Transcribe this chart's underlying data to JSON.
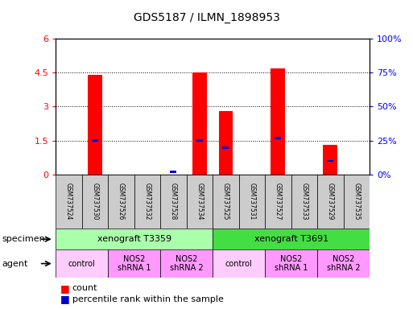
{
  "title": "GDS5187 / ILMN_1898953",
  "samples": [
    "GSM737524",
    "GSM737530",
    "GSM737526",
    "GSM737532",
    "GSM737528",
    "GSM737534",
    "GSM737525",
    "GSM737531",
    "GSM737527",
    "GSM737533",
    "GSM737529",
    "GSM737535"
  ],
  "counts": [
    0.0,
    4.4,
    0.0,
    0.0,
    0.0,
    4.5,
    2.8,
    0.0,
    4.7,
    0.0,
    1.3,
    0.0
  ],
  "percentiles": [
    0.0,
    25.0,
    0.0,
    0.0,
    2.0,
    25.0,
    20.0,
    0.0,
    27.0,
    0.0,
    10.0,
    0.0
  ],
  "ylim_left": [
    0,
    6
  ],
  "ylim_right": [
    0,
    100
  ],
  "yticks_left": [
    0,
    1.5,
    3,
    4.5,
    6
  ],
  "yticks_right": [
    0,
    25,
    50,
    75,
    100
  ],
  "ytick_labels_left": [
    "0",
    "1.5",
    "3",
    "4.5",
    "6"
  ],
  "ytick_labels_right": [
    "0%",
    "25%",
    "50%",
    "75%",
    "100%"
  ],
  "bar_color": "#ff0000",
  "percentile_color": "#0000cc",
  "specimen_groups": [
    {
      "label": "xenograft T3359",
      "start": 0,
      "end": 5,
      "color": "#aaffaa"
    },
    {
      "label": "xenograft T3691",
      "start": 6,
      "end": 11,
      "color": "#44dd44"
    }
  ],
  "agent_groups": [
    {
      "label": "control",
      "start": 0,
      "end": 1,
      "color": "#ffccff"
    },
    {
      "label": "NOS2\nshRNA 1",
      "start": 2,
      "end": 3,
      "color": "#ff99ff"
    },
    {
      "label": "NOS2\nshRNA 2",
      "start": 4,
      "end": 5,
      "color": "#ff99ff"
    },
    {
      "label": "control",
      "start": 6,
      "end": 7,
      "color": "#ffccff"
    },
    {
      "label": "NOS2\nshRNA 1",
      "start": 8,
      "end": 9,
      "color": "#ff99ff"
    },
    {
      "label": "NOS2\nshRNA 2",
      "start": 10,
      "end": 11,
      "color": "#ff99ff"
    }
  ],
  "bg_color": "#ffffff",
  "sample_bg": "#cccccc"
}
